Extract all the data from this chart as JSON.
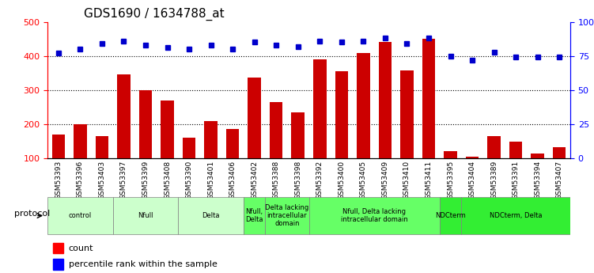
{
  "title": "GDS1690 / 1634788_at",
  "samples": [
    "GSM53393",
    "GSM53396",
    "GSM53403",
    "GSM53397",
    "GSM53399",
    "GSM53408",
    "GSM53390",
    "GSM53401",
    "GSM53406",
    "GSM53402",
    "GSM53388",
    "GSM53398",
    "GSM53392",
    "GSM53400",
    "GSM53405",
    "GSM53409",
    "GSM53410",
    "GSM53411",
    "GSM53395",
    "GSM53404",
    "GSM53389",
    "GSM53391",
    "GSM53394",
    "GSM53407"
  ],
  "counts": [
    170,
    200,
    165,
    345,
    300,
    270,
    160,
    210,
    185,
    337,
    265,
    235,
    390,
    355,
    408,
    440,
    358,
    450,
    120,
    105,
    165,
    148,
    113,
    133
  ],
  "percentiles": [
    77,
    80,
    84,
    86,
    83,
    81,
    80,
    83,
    80,
    85,
    83,
    82,
    86,
    85,
    86,
    88,
    84,
    88,
    75,
    72,
    78,
    74,
    74,
    74
  ],
  "groups": [
    {
      "label": "control",
      "start": 0,
      "end": 3,
      "color": "#ccffcc"
    },
    {
      "label": "Nfull",
      "start": 3,
      "end": 6,
      "color": "#ccffcc"
    },
    {
      "label": "Delta",
      "start": 6,
      "end": 9,
      "color": "#ccffcc"
    },
    {
      "label": "Nfull,\nDelta",
      "start": 9,
      "end": 10,
      "color": "#66ff66"
    },
    {
      "label": "Delta lacking\nintracellular\ndomain",
      "start": 10,
      "end": 12,
      "color": "#66ff66"
    },
    {
      "label": "Nfull, Delta lacking\nintracellular domain",
      "start": 12,
      "end": 18,
      "color": "#66ff66"
    },
    {
      "label": "NDCterm",
      "start": 18,
      "end": 19,
      "color": "#33ee33"
    },
    {
      "label": "NDCterm, Delta",
      "start": 19,
      "end": 24,
      "color": "#33ee33"
    }
  ],
  "bar_color": "#cc0000",
  "dot_color": "#0000cc",
  "ylim_left": [
    100,
    500
  ],
  "ylim_right": [
    0,
    100
  ],
  "yticks_left": [
    100,
    200,
    300,
    400,
    500
  ],
  "yticks_right": [
    0,
    25,
    50,
    75,
    100
  ],
  "ytick_labels_right": [
    "0",
    "25",
    "50",
    "75",
    "100%"
  ],
  "grid_values": [
    200,
    300,
    400
  ],
  "background_color": "#ffffff",
  "protocol_label": "protocol"
}
